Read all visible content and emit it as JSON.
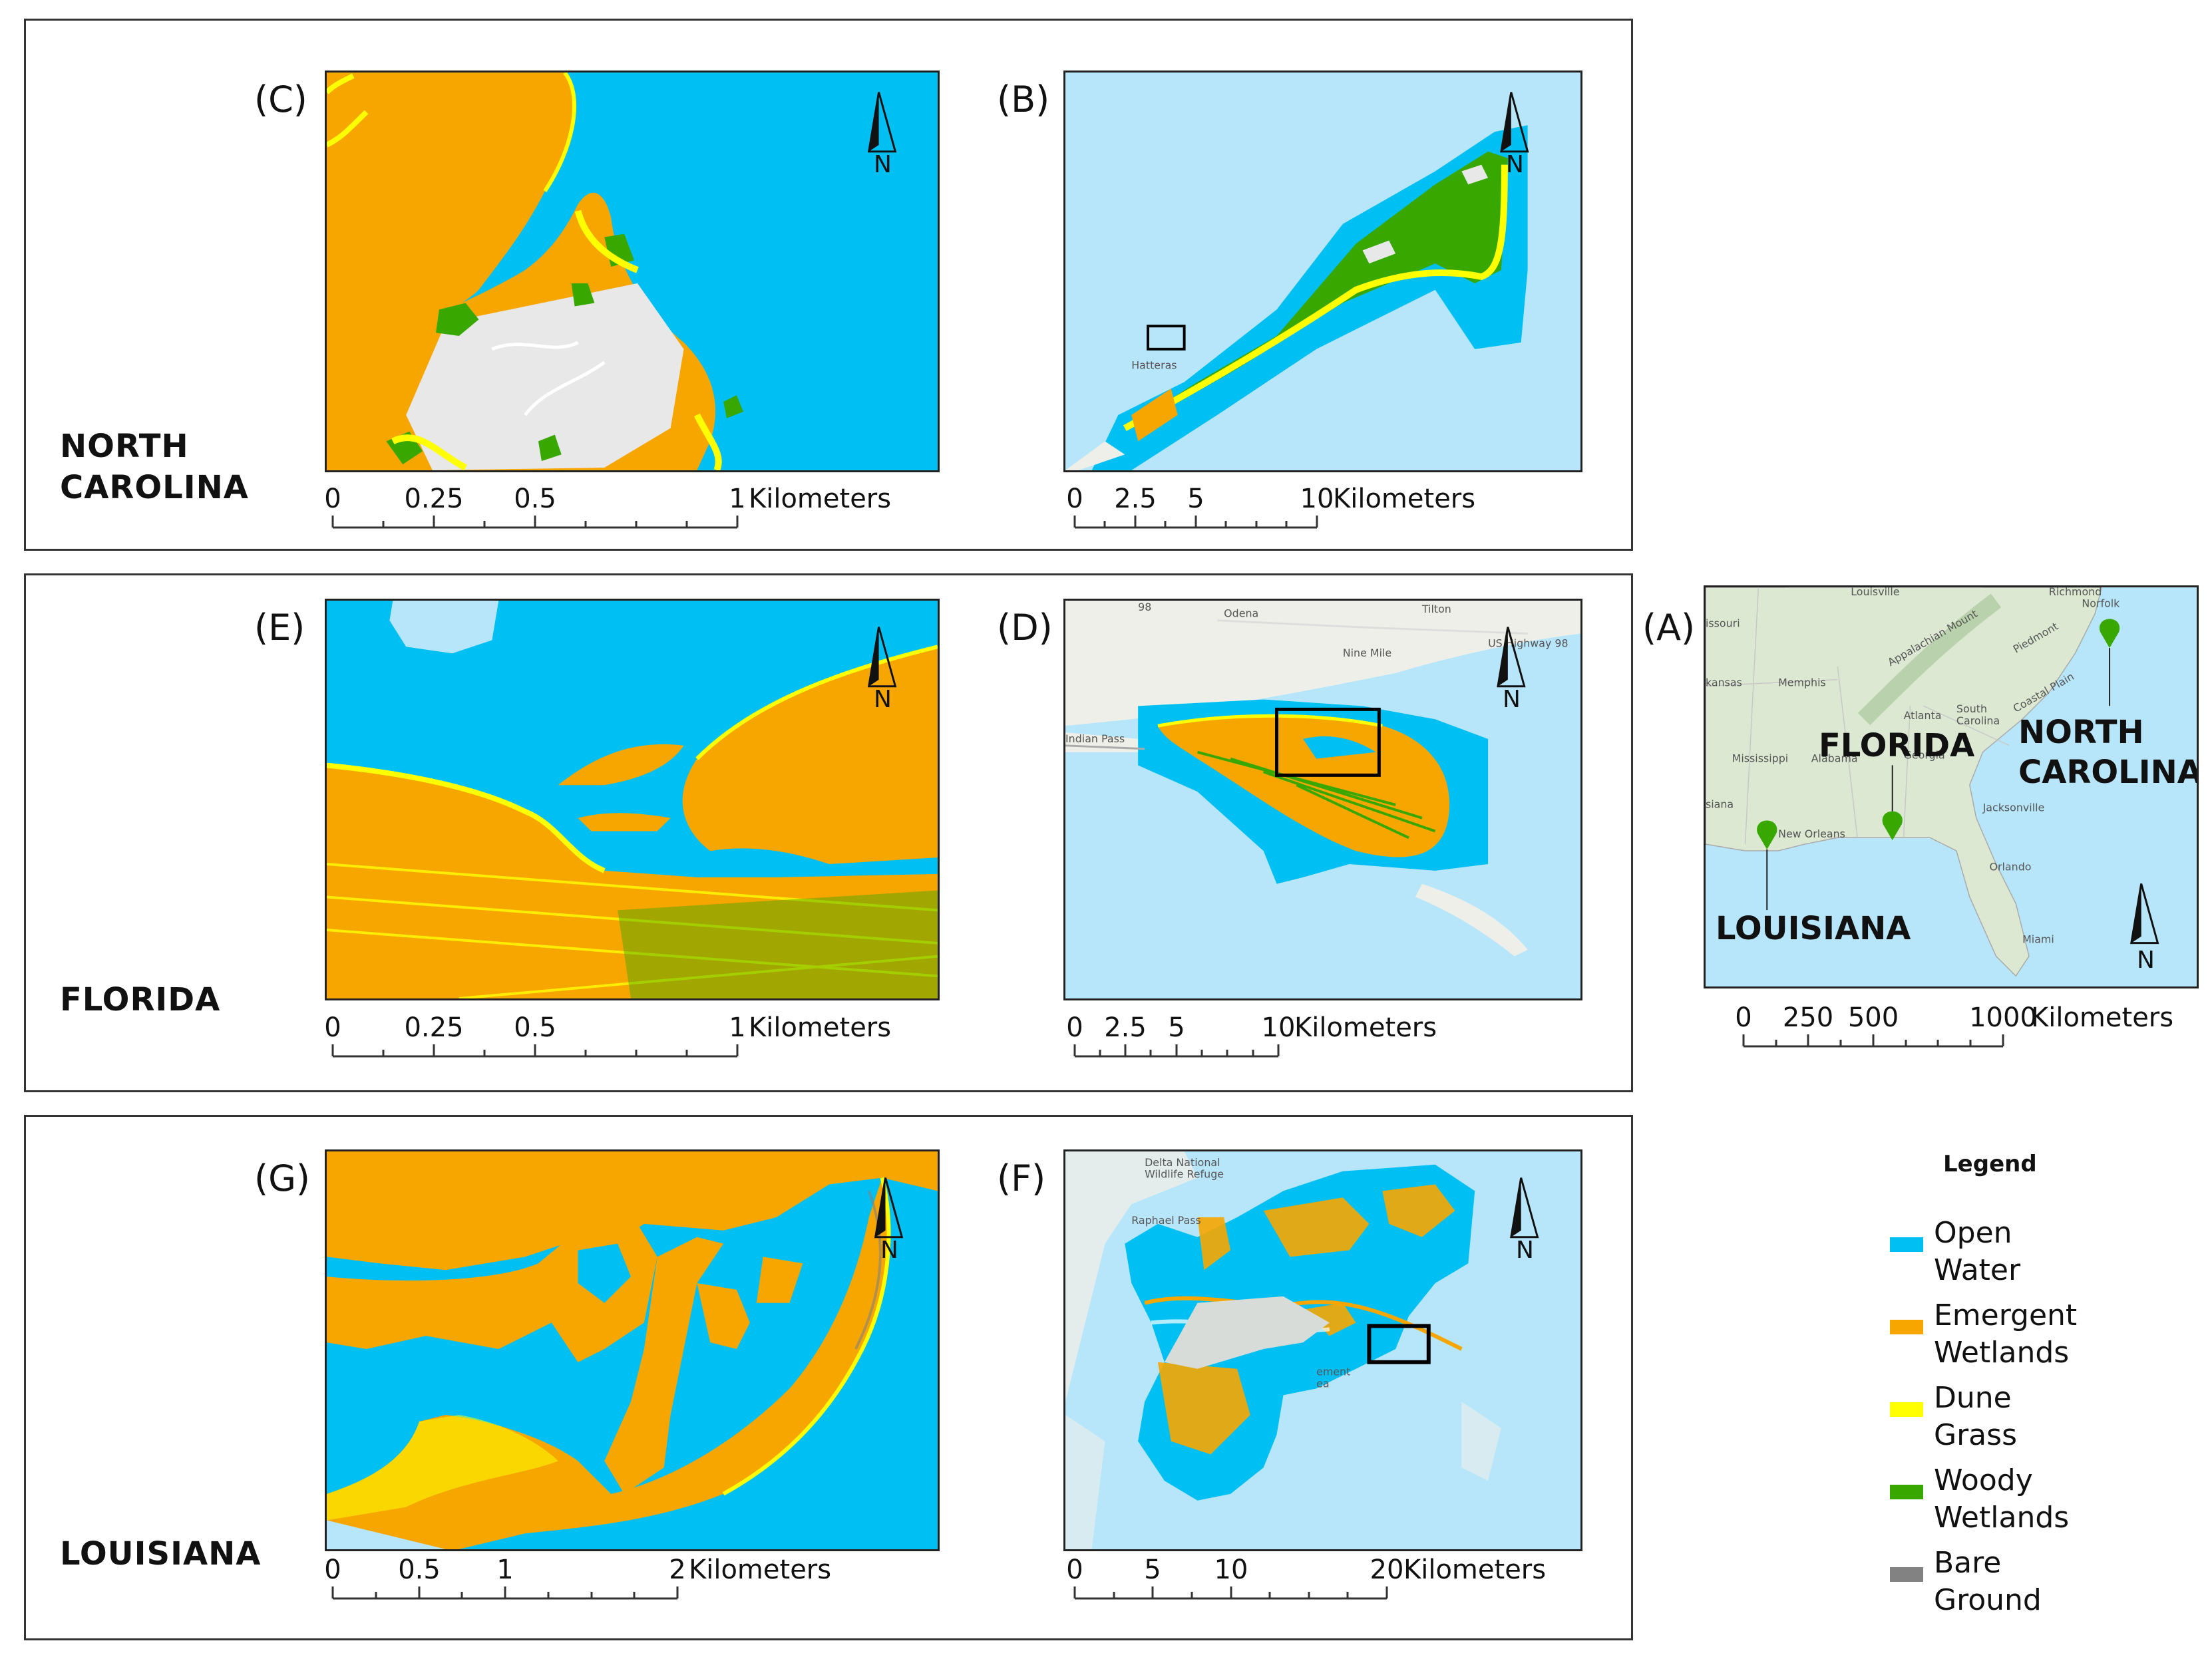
{
  "colors": {
    "open_water": "#00BFF3",
    "emergent_wetlands": "#F7A600",
    "dune_grass": "#FFFF00",
    "woody_wetlands": "#38A800",
    "bare_ground": "#828282",
    "basemap_water": "#B7E6FA",
    "basemap_land": "#EFEFE9",
    "developed": "#E8E8E8"
  },
  "rows": {
    "nc": {
      "state": "NORTH CAROLINA"
    },
    "fl": {
      "state": "FLORIDA"
    },
    "la": {
      "state": "LOUISIANA"
    }
  },
  "panels": {
    "C": {
      "label": "(C)",
      "north": "N",
      "scale": {
        "ticks": [
          "0",
          "0.25",
          "0.5",
          "1"
        ],
        "unit": "Kilometers"
      }
    },
    "B": {
      "label": "(B)",
      "north": "N",
      "place": "Hatteras",
      "scale": {
        "ticks": [
          "0",
          "2.5",
          "5",
          "10"
        ],
        "unit": "Kilometers"
      }
    },
    "E": {
      "label": "(E)",
      "north": "N",
      "scale": {
        "ticks": [
          "0",
          "0.25",
          "0.5",
          "1"
        ],
        "unit": "Kilometers"
      }
    },
    "D": {
      "label": "(D)",
      "north": "N",
      "places": {
        "odena": "Odena",
        "tilton": "Tilton",
        "nine_mile": "Nine Mile",
        "us_highway": "US Highway 98",
        "indian_pass": "Indian Pass",
        "route": "98"
      },
      "scale": {
        "ticks": [
          "0",
          "2.5",
          "5",
          "10"
        ],
        "unit": "Kilometers"
      }
    },
    "G": {
      "label": "(G)",
      "north": "N",
      "scale": {
        "ticks": [
          "0",
          "0.5",
          "1",
          "2"
        ],
        "unit": "Kilometers"
      }
    },
    "F": {
      "label": "(F)",
      "north": "N",
      "places": {
        "refuge_1": "Delta National",
        "refuge_2": "Wildlife Refuge",
        "pass": "Raphael Pass",
        "mgmt_1": "ement",
        "mgmt_2": "ea"
      },
      "scale": {
        "ticks": [
          "0",
          "5",
          "10",
          "20"
        ],
        "unit": "Kilometers"
      }
    },
    "A": {
      "label": "(A)",
      "north": "N",
      "places": {
        "louisville": "Louisville",
        "richmond": "Richmond",
        "norfolk": "Norfolk",
        "missouri": "issouri",
        "kansas": "kansas",
        "memphis": "Memphis",
        "appalachian": "Appalachian Mount",
        "piedmont": "Piedmont",
        "south_carolina_1": "South",
        "south_carolina_2": "Carolina",
        "coastal_plain": "Coastal Plain",
        "atlanta": "Atlanta",
        "georgia": "Georgia",
        "alabama": "Alabama",
        "mississippi": "Mississippi",
        "siana": "siana",
        "new_orleans": "New Orleans",
        "jacksonville": "Jacksonville",
        "orlando": "Orlando",
        "miami": "Miami"
      },
      "sites": {
        "nc_1": "NORTH",
        "nc_2": "CAROLINA",
        "fl": "FLORIDA",
        "la": "LOUISIANA"
      },
      "scale": {
        "ticks": [
          "0",
          "250",
          "500",
          "1000"
        ],
        "unit": "Kilometers"
      }
    }
  },
  "legend": {
    "title": "Legend",
    "items": [
      {
        "line1": "Open",
        "line2": "Water",
        "color": "#00BFF3"
      },
      {
        "line1": "Emergent",
        "line2": "Wetlands",
        "color": "#F7A600"
      },
      {
        "line1": "Dune",
        "line2": "Grass",
        "color": "#FFFF00"
      },
      {
        "line1": "Woody",
        "line2": "Wetlands",
        "color": "#38A800"
      },
      {
        "line1": "Bare",
        "line2": "Ground",
        "color": "#828282"
      }
    ]
  }
}
